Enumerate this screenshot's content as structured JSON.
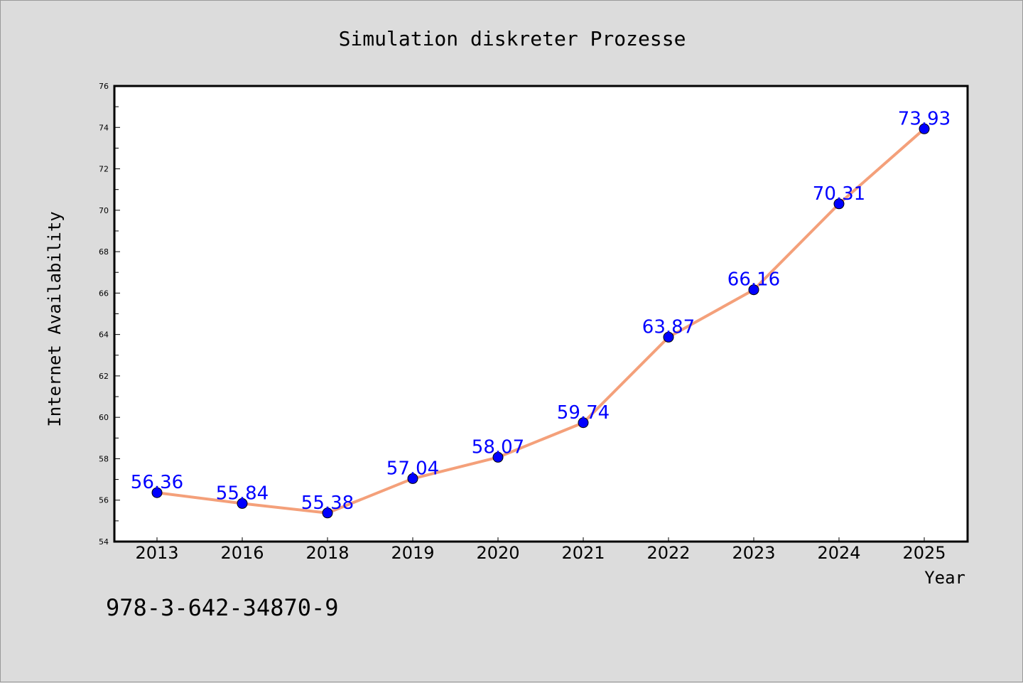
{
  "chart_data": {
    "type": "line",
    "title": "Simulation diskreter Prozesse",
    "xlabel": "Year",
    "ylabel": "Internet Availability",
    "categories": [
      "2013",
      "2016",
      "2018",
      "2019",
      "2020",
      "2021",
      "2022",
      "2023",
      "2024",
      "2025"
    ],
    "series": [
      {
        "values": [
          56.36,
          55.84,
          55.38,
          57.04,
          58.07,
          59.74,
          63.87,
          66.16,
          70.31,
          73.93
        ],
        "labels": [
          "56.36",
          "55.84",
          "55.38",
          "57.04",
          "58.07",
          "59.74",
          "63.87",
          "66.16",
          "70.31",
          "73.93"
        ],
        "line_color": "#f4a07a",
        "marker_color": "#0000ff"
      }
    ],
    "ylim": [
      54,
      76
    ],
    "yticks": [
      "54",
      "56",
      "58",
      "60",
      "62",
      "64",
      "66",
      "68",
      "70",
      "72",
      "74",
      "76"
    ],
    "grid": false,
    "legend": "none"
  },
  "footer_text": "978-3-642-34870-9",
  "colors": {
    "background": "#dcdcdc",
    "plot_background": "#ffffff",
    "data_label": "#0000ff"
  }
}
